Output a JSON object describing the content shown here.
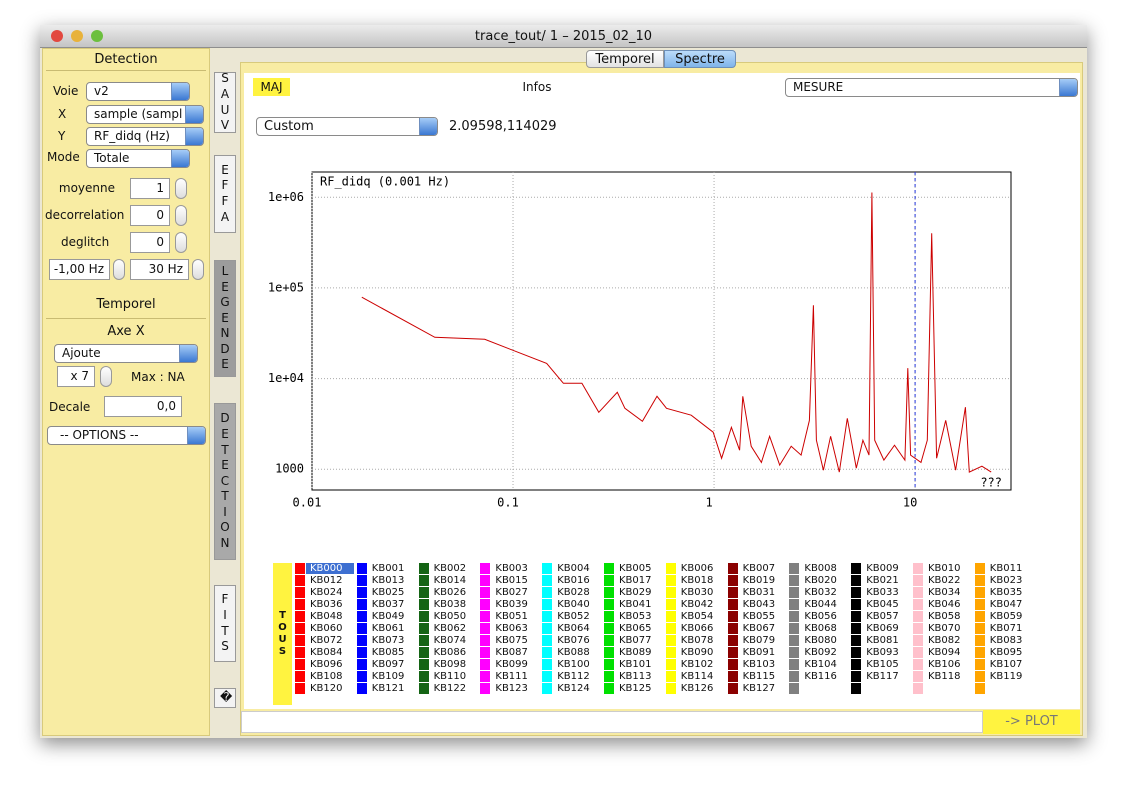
{
  "window": {
    "title": "trace_tout/ 1 – 2015_02_10"
  },
  "left_panel": {
    "detection_header": "Detection",
    "voie": {
      "label": "Voie",
      "value": "v2"
    },
    "x": {
      "label": "X",
      "value": "sample (sampl"
    },
    "y": {
      "label": "Y",
      "value": "RF_didq (Hz)"
    },
    "mode": {
      "label": "Mode",
      "value": "Totale"
    },
    "moyenne": {
      "label": "moyenne",
      "value": "1"
    },
    "decorrelation": {
      "label": "decorrelation",
      "value": "0"
    },
    "deglitch": {
      "label": "deglitch",
      "value": "0"
    },
    "freq_min": "-1,00 Hz",
    "freq_max": "30 Hz",
    "temporel_header": "Temporel",
    "axe_x": "Axe X",
    "axe_x_mode": "Ajoute",
    "factor": "x 7",
    "max": "Max : NA",
    "decale": {
      "label": "Decale",
      "value": "0,0"
    },
    "options": "-- OPTIONS --"
  },
  "tabs": [
    "SAUV",
    "EFFA",
    "LEGENDE",
    "DETECTION",
    "FITS",
    "�"
  ],
  "segments": [
    "Temporel",
    "Spectre"
  ],
  "toolbar": {
    "maj": "MAJ",
    "infos": "Infos",
    "mesure": "MESURE",
    "preset": "Custom",
    "readout": "2.09598,114029"
  },
  "chart_data": {
    "type": "line",
    "title": "RF_didq (0.001 Hz)",
    "annotation": "???",
    "x": [
      0.0177,
      0.0408,
      0.0723,
      0.147,
      0.178,
      0.22,
      0.267,
      0.33,
      0.36,
      0.44,
      0.52,
      0.58,
      0.77,
      0.99,
      1.09,
      1.22,
      1.34,
      1.39,
      1.53,
      1.72,
      1.89,
      2.12,
      2.42,
      2.71,
      2.98,
      3.12,
      3.23,
      3.5,
      3.8,
      4.2,
      4.6,
      5.1,
      5.5,
      5.9,
      6.1,
      6.3,
      7.0,
      7.9,
      8.9,
      9.2,
      9.5,
      10.7,
      11.5,
      12.1,
      12.8,
      14.2,
      15.9,
      17.8,
      18.6,
      21.5,
      23.9
    ],
    "values": [
      79000,
      28500,
      27100,
      14700,
      8870,
      8900,
      4250,
      7060,
      4700,
      3380,
      6370,
      4700,
      3940,
      2560,
      1320,
      2900,
      1620,
      6370,
      1790,
      1190,
      2310,
      1110,
      1790,
      1430,
      3460,
      64300,
      2090,
      975,
      2310,
      930,
      3650,
      1030,
      2090,
      1430,
      1130000,
      2090,
      1260,
      1840,
      1260,
      13000,
      1430,
      1190,
      2090,
      400000,
      1320,
      3460,
      975,
      4830,
      930,
      1080,
      930
    ],
    "color": "#cc0000",
    "xscale": "log",
    "yscale": "log",
    "grid": true,
    "xlim": [
      0.01,
      30
    ],
    "ylim": [
      590,
      1900000
    ],
    "xticks": [
      0.01,
      0.1,
      1,
      10
    ],
    "yticks": [
      1000,
      {
        "value": 10000,
        "label": "1e+04"
      },
      {
        "value": 100000,
        "label": "1e+05"
      },
      {
        "value": 1000000,
        "label": "1e+06"
      }
    ],
    "cursor_x": 10,
    "cursor_color": "#2233dd"
  },
  "legend": {
    "all_button": "TOUS",
    "columns": [
      {
        "color": "#ff0000",
        "items": [
          "KB000",
          "KB012",
          "KB024",
          "KB036",
          "KB048",
          "KB060",
          "KB072",
          "KB084",
          "KB096",
          "KB108",
          "KB120"
        ]
      },
      {
        "color": "#0000ff",
        "items": [
          "KB001",
          "KB013",
          "KB025",
          "KB037",
          "KB049",
          "KB061",
          "KB073",
          "KB085",
          "KB097",
          "KB109",
          "KB121"
        ]
      },
      {
        "color": "#146414",
        "items": [
          "KB002",
          "KB014",
          "KB026",
          "KB038",
          "KB050",
          "KB062",
          "KB074",
          "KB086",
          "KB098",
          "KB110",
          "KB122"
        ]
      },
      {
        "color": "#ff00ff",
        "items": [
          "KB003",
          "KB015",
          "KB027",
          "KB039",
          "KB051",
          "KB063",
          "KB075",
          "KB087",
          "KB099",
          "KB111",
          "KB123"
        ]
      },
      {
        "color": "#00ffff",
        "items": [
          "KB004",
          "KB016",
          "KB028",
          "KB040",
          "KB052",
          "KB064",
          "KB076",
          "KB088",
          "KB100",
          "KB112",
          "KB124"
        ]
      },
      {
        "color": "#00e000",
        "items": [
          "KB005",
          "KB017",
          "KB029",
          "KB041",
          "KB053",
          "KB065",
          "KB077",
          "KB089",
          "KB101",
          "KB113",
          "KB125"
        ]
      },
      {
        "color": "#ffff00",
        "items": [
          "KB006",
          "KB018",
          "KB030",
          "KB042",
          "KB054",
          "KB066",
          "KB078",
          "KB090",
          "KB102",
          "KB114",
          "KB126"
        ]
      },
      {
        "color": "#8b0000",
        "items": [
          "KB007",
          "KB019",
          "KB031",
          "KB043",
          "KB055",
          "KB067",
          "KB079",
          "KB091",
          "KB103",
          "KB115",
          "KB127"
        ]
      },
      {
        "color": "#808080",
        "items": [
          "KB008",
          "KB020",
          "KB032",
          "KB044",
          "KB056",
          "KB068",
          "KB080",
          "KB092",
          "KB104",
          "KB116"
        ]
      },
      {
        "color": "#000000",
        "items": [
          "KB009",
          "KB021",
          "KB033",
          "KB045",
          "KB057",
          "KB069",
          "KB081",
          "KB093",
          "KB105",
          "KB117"
        ]
      },
      {
        "color": "#ffc0cb",
        "items": [
          "KB010",
          "KB022",
          "KB034",
          "KB046",
          "KB058",
          "KB070",
          "KB082",
          "KB094",
          "KB106",
          "KB118"
        ]
      },
      {
        "color": "#ffa500",
        "items": [
          "KB011",
          "KB023",
          "KB035",
          "KB047",
          "KB059",
          "KB071",
          "KB083",
          "KB095",
          "KB107",
          "KB119"
        ]
      }
    ]
  },
  "bottom": {
    "plot_button": "-> PLOT"
  }
}
